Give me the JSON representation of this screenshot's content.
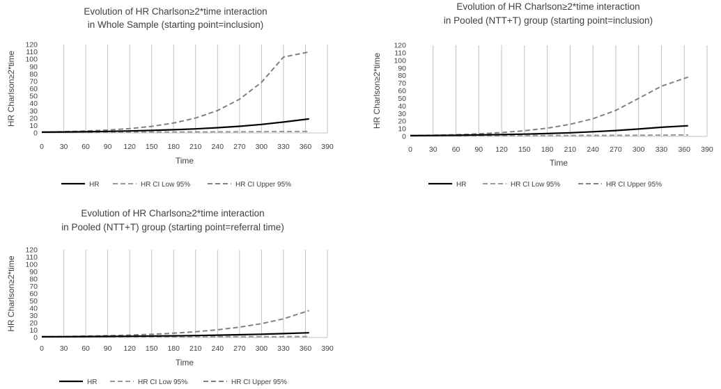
{
  "chart_data": [
    {
      "type": "line",
      "title": "Evolution of HR Charlson≥2*time interaction",
      "subtitle": "in Whole Sample (starting point=inclusion)",
      "xlabel": "Time",
      "ylabel": "HR Charlson≥2*time",
      "xlim": [
        0,
        390
      ],
      "ylim": [
        0,
        120
      ],
      "xticks": [
        "0",
        "30",
        "60",
        "90",
        "120",
        "150",
        "180",
        "210",
        "240",
        "270",
        "300",
        "330",
        "360",
        "390"
      ],
      "yticks": [
        "0",
        "10",
        "20",
        "30",
        "40",
        "50",
        "60",
        "70",
        "80",
        "90",
        "100",
        "110",
        "120"
      ],
      "grid": "vertical",
      "legend": "bottom",
      "x": [
        0,
        30,
        60,
        90,
        120,
        150,
        180,
        210,
        240,
        270,
        300,
        330,
        365
      ],
      "series": [
        {
          "name": "HR",
          "style": "solid",
          "color": "#000000",
          "values": [
            1.0,
            1.3,
            1.6,
            2.1,
            2.6,
            3.4,
            4.3,
            5.5,
            7.1,
            9.0,
            11.5,
            14.7,
            19.0
          ]
        },
        {
          "name": "HR CI Low 95%",
          "style": "dashed",
          "color": "#999999",
          "values": [
            0.9,
            1.0,
            1.0,
            1.1,
            1.1,
            1.2,
            1.3,
            1.4,
            1.5,
            1.6,
            1.8,
            1.9,
            2.0
          ]
        },
        {
          "name": "HR CI Upper 95%",
          "style": "dashed",
          "color": "#808080",
          "values": [
            1.1,
            1.7,
            2.6,
            3.9,
            5.9,
            8.9,
            13.4,
            20.2,
            30.4,
            45.7,
            68.7,
            103.0,
            110.0
          ]
        }
      ]
    },
    {
      "type": "line",
      "title": "Evolution of HR Charlson≥2*time interaction",
      "subtitle": "in Pooled (NTT+T) group (starting point=inclusion)",
      "xlabel": "Time",
      "ylabel": "HR Charlson≥2*time",
      "xlim": [
        0,
        390
      ],
      "ylim": [
        0,
        120
      ],
      "xticks": [
        "0",
        "30",
        "60",
        "90",
        "120",
        "150",
        "180",
        "210",
        "240",
        "270",
        "300",
        "330",
        "360",
        "390"
      ],
      "yticks": [
        "0",
        "10",
        "20",
        "30",
        "40",
        "50",
        "60",
        "70",
        "80",
        "90",
        "100",
        "110",
        "120"
      ],
      "grid": "vertical",
      "legend": "bottom",
      "x": [
        0,
        30,
        60,
        90,
        120,
        150,
        180,
        210,
        240,
        270,
        300,
        330,
        365
      ],
      "series": [
        {
          "name": "HR",
          "style": "solid",
          "color": "#000000",
          "values": [
            1.0,
            1.2,
            1.5,
            1.9,
            2.4,
            3.0,
            3.8,
            4.8,
            6.1,
            7.7,
            9.7,
            12.0,
            14.0
          ]
        },
        {
          "name": "HR CI Low 95%",
          "style": "dashed",
          "color": "#999999",
          "values": [
            0.9,
            1.0,
            1.0,
            1.0,
            1.1,
            1.1,
            1.2,
            1.3,
            1.4,
            1.5,
            1.6,
            1.7,
            1.8
          ]
        },
        {
          "name": "HR CI Upper 95%",
          "style": "dashed",
          "color": "#808080",
          "values": [
            1.1,
            1.6,
            2.3,
            3.4,
            5.0,
            7.4,
            10.8,
            15.9,
            23.3,
            34.2,
            50.0,
            66.0,
            78.0
          ]
        }
      ]
    },
    {
      "type": "line",
      "title": "Evolution of HR Charlson≥2*time interaction",
      "subtitle": "in  Pooled (NTT+T) group (starting point=referral time)",
      "xlabel": "Time",
      "ylabel": "HR Charlson≥2*time",
      "xlim": [
        0,
        390
      ],
      "ylim": [
        0,
        120
      ],
      "xticks": [
        "0",
        "30",
        "60",
        "90",
        "120",
        "150",
        "180",
        "210",
        "240",
        "270",
        "300",
        "330",
        "360",
        "390"
      ],
      "yticks": [
        "0",
        "10",
        "20",
        "30",
        "40",
        "50",
        "60",
        "70",
        "80",
        "90",
        "100",
        "110",
        "120"
      ],
      "grid": "vertical",
      "legend": "bottom",
      "x": [
        0,
        30,
        60,
        90,
        120,
        150,
        180,
        210,
        240,
        270,
        300,
        330,
        365
      ],
      "series": [
        {
          "name": "HR",
          "style": "solid",
          "color": "#000000",
          "values": [
            1.0,
            1.1,
            1.3,
            1.5,
            1.7,
            2.0,
            2.3,
            2.7,
            3.2,
            3.8,
            4.5,
            5.3,
            6.5
          ]
        },
        {
          "name": "HR CI Low 95%",
          "style": "dashed",
          "color": "#999999",
          "values": [
            0.9,
            0.9,
            0.9,
            1.0,
            1.0,
            1.0,
            1.0,
            1.1,
            1.1,
            1.1,
            1.2,
            1.2,
            1.3
          ]
        },
        {
          "name": "HR CI Upper 95%",
          "style": "dashed",
          "color": "#808080",
          "values": [
            1.1,
            1.4,
            1.9,
            2.5,
            3.3,
            4.4,
            5.9,
            7.9,
            10.6,
            14.2,
            19.0,
            25.5,
            37.0
          ]
        }
      ]
    }
  ]
}
